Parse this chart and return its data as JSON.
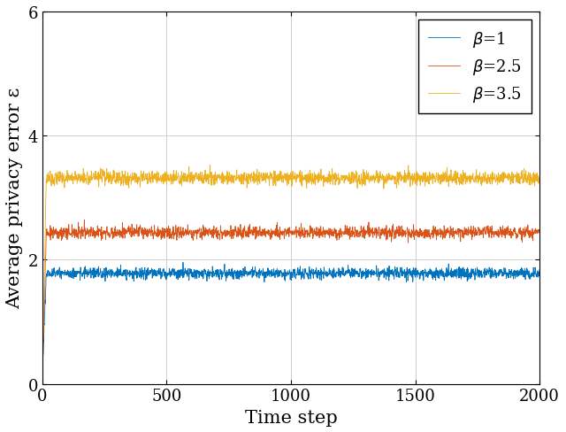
{
  "title": "",
  "xlabel": "Time step",
  "ylabel": "Average privacy error ε",
  "xlim": [
    0,
    2000
  ],
  "ylim": [
    0,
    6
  ],
  "yticks": [
    0,
    2,
    4,
    6
  ],
  "xticks": [
    0,
    500,
    1000,
    1500,
    2000
  ],
  "n_steps": 2000,
  "beta1": {
    "label": "$\\beta$=1",
    "color": "#0072BD",
    "steady_mean": 1.78,
    "noise_std": 0.045,
    "start_val": 0.3,
    "ramp_steps": 15
  },
  "beta2": {
    "label": "$\\beta$=2.5",
    "color": "#D95319",
    "steady_mean": 2.44,
    "noise_std": 0.05,
    "start_val": 0.3,
    "ramp_steps": 15
  },
  "beta3": {
    "label": "$\\beta$=3.5",
    "color": "#EDB120",
    "steady_mean": 3.32,
    "noise_std": 0.055,
    "start_val": 0.3,
    "ramp_steps": 15
  },
  "legend_fontsize": 13,
  "axis_label_fontsize": 15,
  "tick_fontsize": 13,
  "linewidth": 0.6,
  "background_color": "#ffffff",
  "grid_color": "#d0d0d0",
  "grid_linewidth": 0.7
}
